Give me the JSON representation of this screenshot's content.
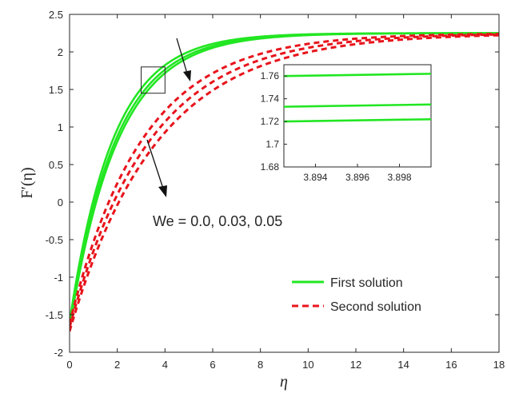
{
  "chart_data": {
    "type": "line",
    "xlabel": "η",
    "ylabel": "F′(η)",
    "xlim": [
      0,
      18
    ],
    "ylim": [
      -2,
      2.5
    ],
    "xticks": [
      "0",
      "2",
      "4",
      "6",
      "8",
      "10",
      "12",
      "14",
      "16",
      "18"
    ],
    "yticks": [
      "-2",
      "-1.5",
      "-1",
      "-0.5",
      "0",
      "0.5",
      "1",
      "1.5",
      "2",
      "2.5"
    ],
    "grid": false,
    "legend_position": "bottom-right",
    "annotation": "We = 0.0, 0.03, 0.05",
    "colors": {
      "first": "#22e622",
      "second": "#e8141c",
      "axis": "#262626"
    },
    "series": [
      {
        "name": "First solution",
        "group": "first",
        "style": "solid",
        "x0": 0,
        "y0": -1.6,
        "y_inf": 2.25,
        "decay": 0.55
      },
      {
        "group": "first",
        "style": "solid",
        "x0": 0,
        "y0": -1.64,
        "y_inf": 2.25,
        "decay": 0.52
      },
      {
        "group": "first",
        "style": "solid",
        "x0": 0,
        "y0": -1.68,
        "y_inf": 2.25,
        "decay": 0.5
      },
      {
        "name": "Second solution",
        "group": "second",
        "style": "dashed",
        "x0": 0,
        "y0": -1.62,
        "y_inf": 2.25,
        "decay": 0.33
      },
      {
        "group": "second",
        "style": "dashed",
        "x0": 0,
        "y0": -1.67,
        "y_inf": 2.25,
        "decay": 0.3
      },
      {
        "group": "second",
        "style": "dashed",
        "x0": 0,
        "y0": -1.72,
        "y_inf": 2.25,
        "decay": 0.275
      }
    ],
    "zoom_box": {
      "x": [
        3.0,
        4.0
      ],
      "y": [
        1.45,
        1.8
      ]
    },
    "inset": {
      "xlim": [
        3.8925,
        3.8995
      ],
      "ylim": [
        1.68,
        1.77
      ],
      "xticks": [
        "3.894",
        "3.896",
        "3.898"
      ],
      "yticks": [
        "1.68",
        "1.7",
        "1.72",
        "1.74",
        "1.76"
      ],
      "lines": [
        {
          "x": [
            3.8925,
            3.8995
          ],
          "y": [
            1.76,
            1.762
          ]
        },
        {
          "x": [
            3.8925,
            3.8995
          ],
          "y": [
            1.733,
            1.735
          ]
        },
        {
          "x": [
            3.8925,
            3.8995
          ],
          "y": [
            1.72,
            1.722
          ]
        }
      ]
    }
  }
}
